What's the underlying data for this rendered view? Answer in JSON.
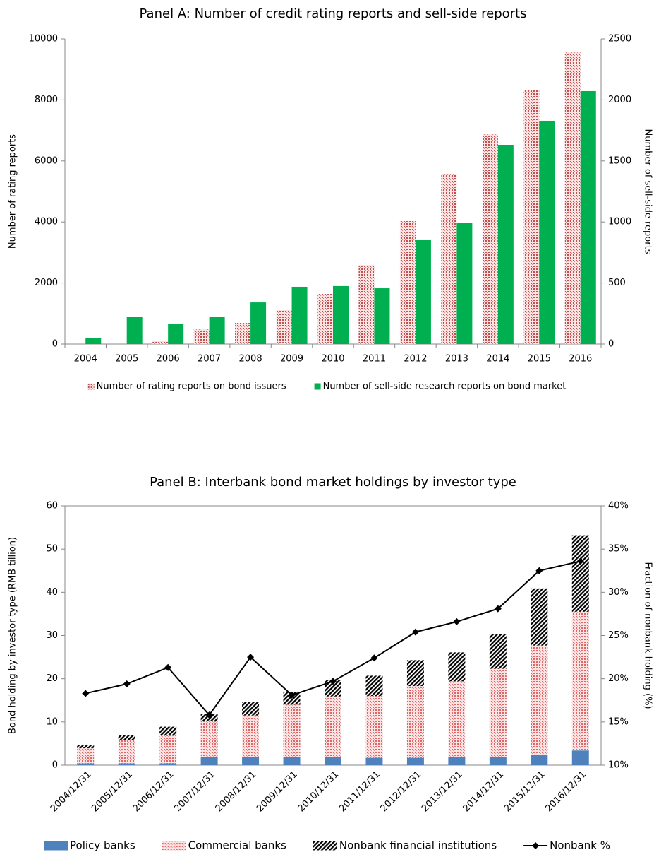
{
  "chart_data": [
    {
      "type": "bar",
      "title": "Panel A: Number of credit rating reports and sell-side reports",
      "ylabel": "Number of rating reports",
      "y2label": "Number of sell-side reports",
      "categories": [
        "2004",
        "2005",
        "2006",
        "2007",
        "2008",
        "2009",
        "2010",
        "2011",
        "2012",
        "2013",
        "2014",
        "2015",
        "2016"
      ],
      "series": [
        {
          "name": "Number of rating reports on bond issuers",
          "color": "#c0504d",
          "pattern": "dots",
          "values": [
            0,
            0,
            116,
            509,
            694,
            1111,
            1643,
            2593,
            4028,
            5579,
            6875,
            8310,
            9560
          ]
        },
        {
          "name": "Number of sell-side research reports on bond market",
          "color": "#00b050",
          "axis": "y2",
          "values": [
            52,
            220,
            168,
            220,
            341,
            469,
            475,
            457,
            856,
            995,
            1632,
            1829,
            2072
          ]
        }
      ],
      "ylim": [
        0,
        10000
      ],
      "yticks": [
        0,
        2000,
        4000,
        6000,
        8000,
        10000
      ],
      "y2lim": [
        0,
        2500
      ],
      "y2ticks": [
        0,
        500,
        1000,
        1500,
        2000,
        2500
      ],
      "grid": false,
      "legend": "bottom"
    },
    {
      "type": "bar",
      "stacked": true,
      "title": "Panel B: Interbank bond market holdings by investor type",
      "ylabel": "Bond holding by investor type (RMB tillion)",
      "y2label": "Fraction of nonbank holding (%)",
      "categories": [
        "2004/12/31",
        "2005/12/31",
        "2006/12/31",
        "2007/12/31",
        "2008/12/31",
        "2009/12/31",
        "2010/12/31",
        "2011/12/31",
        "2012/12/31",
        "2013/12/31",
        "2014/12/31",
        "2015/12/31",
        "2016/12/31"
      ],
      "series": [
        {
          "name": "Policy banks",
          "color": "#4f81bd",
          "values": [
            0.4,
            0.4,
            0.4,
            1.8,
            1.8,
            1.9,
            1.8,
            1.7,
            1.7,
            1.8,
            1.9,
            2.3,
            3.4
          ]
        },
        {
          "name": "Commercial banks",
          "color": "#e06666",
          "pattern": "dots",
          "values": [
            3.5,
            5.4,
            6.6,
            8.5,
            9.7,
            12.1,
            14.1,
            14.3,
            16.6,
            17.6,
            20.4,
            25.4,
            32.1
          ]
        },
        {
          "name": "Nonbank financial institutions",
          "color": "#000000",
          "pattern": "stripes",
          "values": [
            0.7,
            1.1,
            1.9,
            1.6,
            3.1,
            2.9,
            3.8,
            4.7,
            6.0,
            6.7,
            8.1,
            13.2,
            17.7
          ]
        },
        {
          "name": "Nonbank %",
          "color": "#000000",
          "type": "line",
          "axis": "y2",
          "values": [
            18.3,
            19.4,
            21.3,
            15.8,
            22.5,
            18.1,
            19.7,
            22.4,
            25.4,
            26.6,
            28.1,
            32.5,
            33.6
          ]
        }
      ],
      "ylim": [
        0,
        60
      ],
      "yticks": [
        0,
        10,
        20,
        30,
        40,
        50,
        60
      ],
      "y2lim": [
        10,
        40
      ],
      "y2ticks": [
        {
          "value": 10,
          "label": "10%"
        },
        {
          "value": 15,
          "label": "15%"
        },
        {
          "value": 20,
          "label": "20%"
        },
        {
          "value": 25,
          "label": "25%"
        },
        {
          "value": 30,
          "label": "30%"
        },
        {
          "value": 35,
          "label": "35%"
        },
        {
          "value": 40,
          "label": "40%"
        }
      ],
      "grid": false,
      "legend": "bottom"
    }
  ]
}
